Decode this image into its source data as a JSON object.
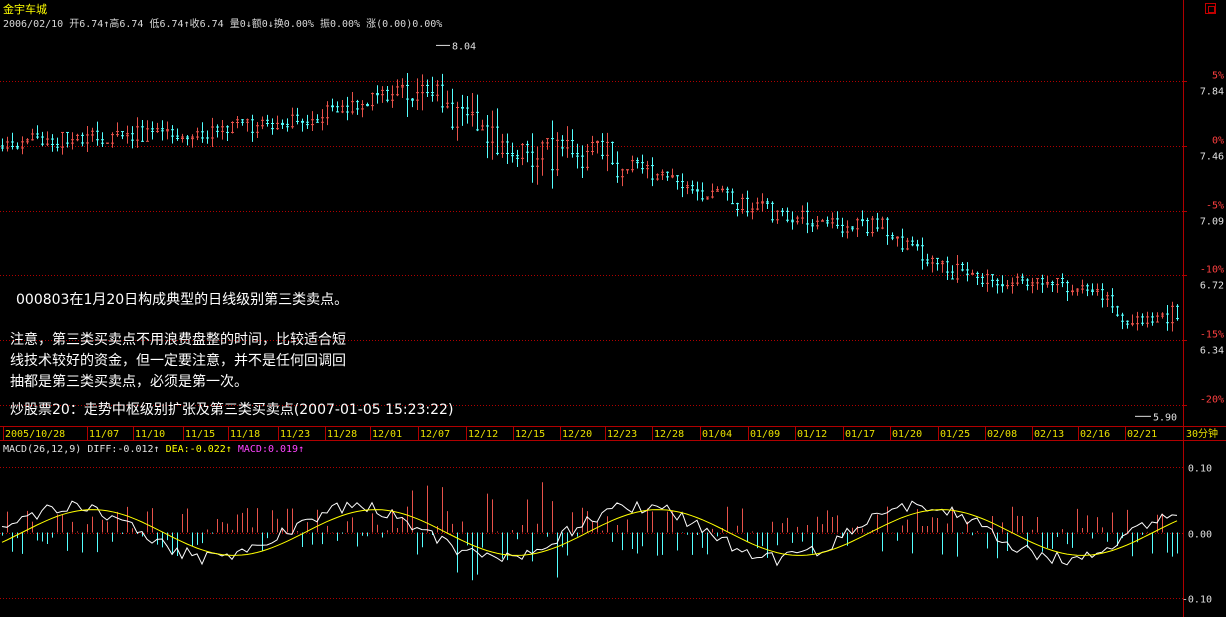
{
  "window": {
    "title": "金宇车城"
  },
  "info_bar": {
    "date": "2006/02/10",
    "open": "开6.74↑",
    "high": "高6.74",
    "low": "低6.74↑",
    "close": "收6.74",
    "volume": "量0↓",
    "amount": "额0↓",
    "turnover": "换0.00%",
    "amplitude": "振0.00%",
    "change": "涨(0.00)0.00%"
  },
  "price_axis": {
    "labels": [
      {
        "pct": "5%",
        "price": "7.84"
      },
      {
        "pct": "0%",
        "price": "7.46"
      },
      {
        "pct": "-5%",
        "price": "7.09"
      },
      {
        "pct": "-10%",
        "price": "6.72"
      },
      {
        "pct": "-15%",
        "price": "6.34"
      },
      {
        "pct": "-20%",
        "price": ""
      }
    ],
    "high_marker": "8.04",
    "low_marker": "5.90"
  },
  "date_axis": {
    "labels": [
      "2005/10/28",
      "11/07",
      "11/10",
      "11/15",
      "11/18",
      "11/23",
      "11/28",
      "12/01",
      "12/07",
      "12/12",
      "12/15",
      "12/20",
      "12/23",
      "12/28",
      "01/04",
      "01/09",
      "01/12",
      "01/17",
      "01/20",
      "01/25",
      "02/08",
      "02/13",
      "02/16",
      "02/21"
    ],
    "period": "30分钟"
  },
  "annotations": {
    "main": "000803在1月20日构成典型的日线级别第三类卖点。",
    "note_lines": [
      "注意，第三类买卖点不用浪费盘整的时间，比较适合短",
      "线技术较好的资金，但一定要注意，并不是任何回调回",
      "抽都是第三类买卖点，必须是第一次。"
    ],
    "source": "炒股票20：走势中枢级别扩张及第三类买卖点(2007-01-05 15:23:22)"
  },
  "macd": {
    "legend_name": "MACD(26,12,9)",
    "diff": "DIFF:-0.012↑",
    "dea": "DEA:-0.022↑",
    "macd": "MACD:0.019↑",
    "axis_labels": [
      "0.10",
      "0.00",
      "-0.10"
    ]
  },
  "colors": {
    "up": "#e8524a",
    "down": "#54ffff",
    "grid": "#b00000",
    "dea": "#ffff00",
    "diff": "#ffffff"
  },
  "chart_data": {
    "type": "candlestick",
    "y_range": [
      5.9,
      8.04
    ],
    "reference_price": 7.46,
    "macd_range": [
      -0.12,
      0.12
    ],
    "x_labels": [
      "2005/10/28",
      "11/07",
      "11/10",
      "11/15",
      "11/18",
      "11/23",
      "11/28",
      "12/01",
      "12/07",
      "12/12",
      "12/15",
      "12/20",
      "12/23",
      "12/28",
      "01/04",
      "01/09",
      "01/12",
      "01/17",
      "01/20",
      "01/25",
      "02/08",
      "02/13",
      "02/16",
      "02/21"
    ]
  }
}
